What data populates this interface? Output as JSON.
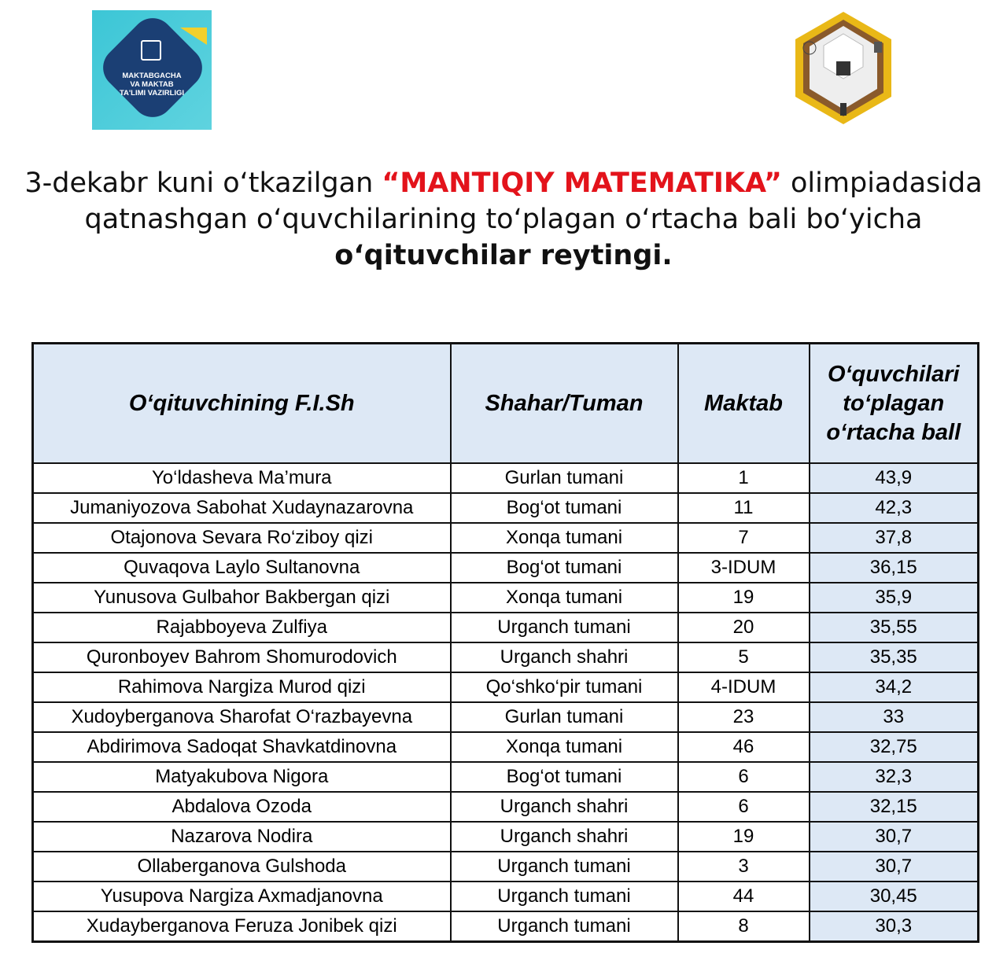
{
  "logos": {
    "left": {
      "text": [
        "MAKTABGACHA",
        "VA MAKTAB",
        "TA'LIMI VAZIRLIGI"
      ]
    }
  },
  "title": {
    "line1_pre": "3-dekabr kuni o‘tkazilgan ",
    "line1_highlight": "“MANTIQIY MATEMATIKA”",
    "line1_post": " olimpiadasida",
    "line2": "qatnashgan o‘quvchilarining to‘plagan o‘rtacha bali bo‘yicha",
    "line3": "o‘qituvchilar reytingi."
  },
  "colors": {
    "highlight": "#e3131b",
    "header_fill": "#dde8f5"
  },
  "table": {
    "headers": [
      "O‘qituvchining F.I.Sh",
      "Shahar/Tuman",
      "Maktab",
      "O‘quvchilari to‘plagan o‘rtacha ball"
    ],
    "rows": [
      [
        "Yo‘ldasheva Ma’mura",
        "Gurlan tumani",
        "1",
        "43,9"
      ],
      [
        "Jumaniyozova Sabohat Xudaynazarovna",
        "Bog‘ot tumani",
        "11",
        "42,3"
      ],
      [
        "Otajonova Sevara Ro‘ziboy qizi",
        "Xonqa tumani",
        "7",
        "37,8"
      ],
      [
        "Quvaqova Laylo Sultanovna",
        "Bog‘ot tumani",
        "3-IDUM",
        "36,15"
      ],
      [
        "Yunusova Gulbahor Bakbergan qizi",
        "Xonqa tumani",
        "19",
        "35,9"
      ],
      [
        "Rajabboyeva Zulfiya",
        "Urganch tumani",
        "20",
        "35,55"
      ],
      [
        "Quronboyev Bahrom Shomurodovich",
        "Urganch shahri",
        "5",
        "35,35"
      ],
      [
        "Rahimova Nargiza Murod qizi",
        "Qo‘shko‘pir tumani",
        "4-IDUM",
        "34,2"
      ],
      [
        "Xudoyberganova Sharofat O‘razbayevna",
        "Gurlan tumani",
        "23",
        "33"
      ],
      [
        "Abdirimova Sadoqat Shavkatdinovna",
        "Xonqa tumani",
        "46",
        "32,75"
      ],
      [
        "Matyakubova Nigora",
        "Bog‘ot tumani",
        "6",
        "32,3"
      ],
      [
        "Abdalova Ozoda",
        "Urganch shahri",
        "6",
        "32,15"
      ],
      [
        "Nazarova Nodira",
        "Urganch shahri",
        "19",
        "30,7"
      ],
      [
        "Ollaberganova Gulshoda",
        "Urganch tumani",
        "3",
        "30,7"
      ],
      [
        "Yusupova Nargiza Axmadjanovna",
        "Urganch tumani",
        "44",
        "30,45"
      ],
      [
        "Xudayberganova Feruza Jonibek qizi",
        "Urganch tumani",
        "8",
        "30,3"
      ]
    ]
  }
}
